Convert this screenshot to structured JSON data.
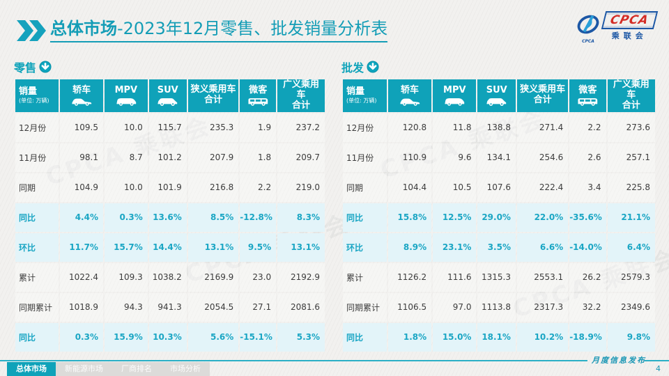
{
  "header": {
    "title_bold": "总体市场",
    "title_rest": "-2023年12月零售、批发销量分析表",
    "logo": {
      "abbr": "CPCA",
      "cn_name": "乘联会",
      "emblem_sub": "CPCA"
    }
  },
  "watermark": {
    "text": "CPCA 乘联会"
  },
  "tables": {
    "unit_note": "(单位: 万辆)",
    "columns": [
      {
        "label": "销量",
        "icon": null
      },
      {
        "label": "轿车",
        "icon": "sedan"
      },
      {
        "label": "MPV",
        "icon": "mpv"
      },
      {
        "label": "SUV",
        "icon": "suv"
      },
      {
        "label": "狭义乘用车 合计",
        "two_line": [
          "狭义乘用车",
          "合计"
        ],
        "icon": null
      },
      {
        "label": "微客",
        "icon": "microvan"
      },
      {
        "label": "广义乘用车 合计",
        "two_line": [
          "广义乘用车",
          "合计"
        ],
        "icon": null
      }
    ],
    "retail": {
      "label": "零售",
      "rows": [
        {
          "label": "12月份",
          "type": "normal",
          "cells": [
            "109.5",
            "10.0",
            "115.7",
            "235.3",
            "1.9",
            "237.2"
          ]
        },
        {
          "label": "11月份",
          "type": "normal",
          "cells": [
            "98.1",
            "8.7",
            "101.2",
            "207.9",
            "1.8",
            "209.7"
          ]
        },
        {
          "label": "同期",
          "type": "normal",
          "cells": [
            "104.9",
            "10.0",
            "101.9",
            "216.8",
            "2.2",
            "219.0"
          ]
        },
        {
          "label": "同比",
          "type": "pct",
          "cells": [
            "4.4%",
            "0.3%",
            "13.6%",
            "8.5%",
            "-12.8%",
            "8.3%"
          ]
        },
        {
          "label": "环比",
          "type": "pct",
          "cells": [
            "11.7%",
            "15.7%",
            "14.4%",
            "13.1%",
            "9.5%",
            "13.1%"
          ]
        },
        {
          "label": "累计",
          "type": "normal",
          "cells": [
            "1022.4",
            "109.3",
            "1038.2",
            "2169.9",
            "23.0",
            "2192.9"
          ]
        },
        {
          "label": "同期累计",
          "type": "normal",
          "cells": [
            "1018.9",
            "94.3",
            "941.3",
            "2054.5",
            "27.1",
            "2081.6"
          ]
        },
        {
          "label": "同比",
          "type": "pct",
          "cells": [
            "0.3%",
            "15.9%",
            "10.3%",
            "5.6%",
            "-15.1%",
            "5.3%"
          ]
        }
      ]
    },
    "wholesale": {
      "label": "批发",
      "rows": [
        {
          "label": "12月份",
          "type": "normal",
          "cells": [
            "120.8",
            "11.8",
            "138.8",
            "271.4",
            "2.2",
            "273.6"
          ]
        },
        {
          "label": "11月份",
          "type": "normal",
          "cells": [
            "110.9",
            "9.6",
            "134.1",
            "254.6",
            "2.6",
            "257.1"
          ]
        },
        {
          "label": "同期",
          "type": "normal",
          "cells": [
            "104.4",
            "10.5",
            "107.6",
            "222.4",
            "3.4",
            "225.8"
          ]
        },
        {
          "label": "同比",
          "type": "pct",
          "cells": [
            "15.8%",
            "12.5%",
            "29.0%",
            "22.0%",
            "-35.6%",
            "21.1%"
          ]
        },
        {
          "label": "环比",
          "type": "pct",
          "cells": [
            "8.9%",
            "23.1%",
            "3.5%",
            "6.6%",
            "-14.0%",
            "6.4%"
          ]
        },
        {
          "label": "累计",
          "type": "normal",
          "cells": [
            "1126.2",
            "111.6",
            "1315.3",
            "2553.1",
            "26.2",
            "2579.3"
          ]
        },
        {
          "label": "同期累计",
          "type": "normal",
          "cells": [
            "1106.5",
            "97.0",
            "1113.8",
            "2317.3",
            "32.2",
            "2349.6"
          ]
        },
        {
          "label": "同比",
          "type": "pct",
          "cells": [
            "1.8%",
            "15.0%",
            "18.1%",
            "10.2%",
            "-18.9%",
            "9.8%"
          ]
        }
      ]
    }
  },
  "footer": {
    "tabs": [
      {
        "label": "总体市场",
        "active": true
      },
      {
        "label": "新能源市场",
        "active": false
      },
      {
        "label": "厂商排名",
        "active": false
      },
      {
        "label": "市场分析",
        "active": false
      }
    ],
    "release_note": "月度信息发布",
    "page_number": "4"
  },
  "colors": {
    "accent_teal": "#0fa2b9",
    "pct_text": "#1ba6c4",
    "pct_row_bg": "#e3f4f9",
    "logo_blue": "#1c57a5",
    "logo_red": "#d22c26",
    "body_text": "#3c3c3c"
  }
}
